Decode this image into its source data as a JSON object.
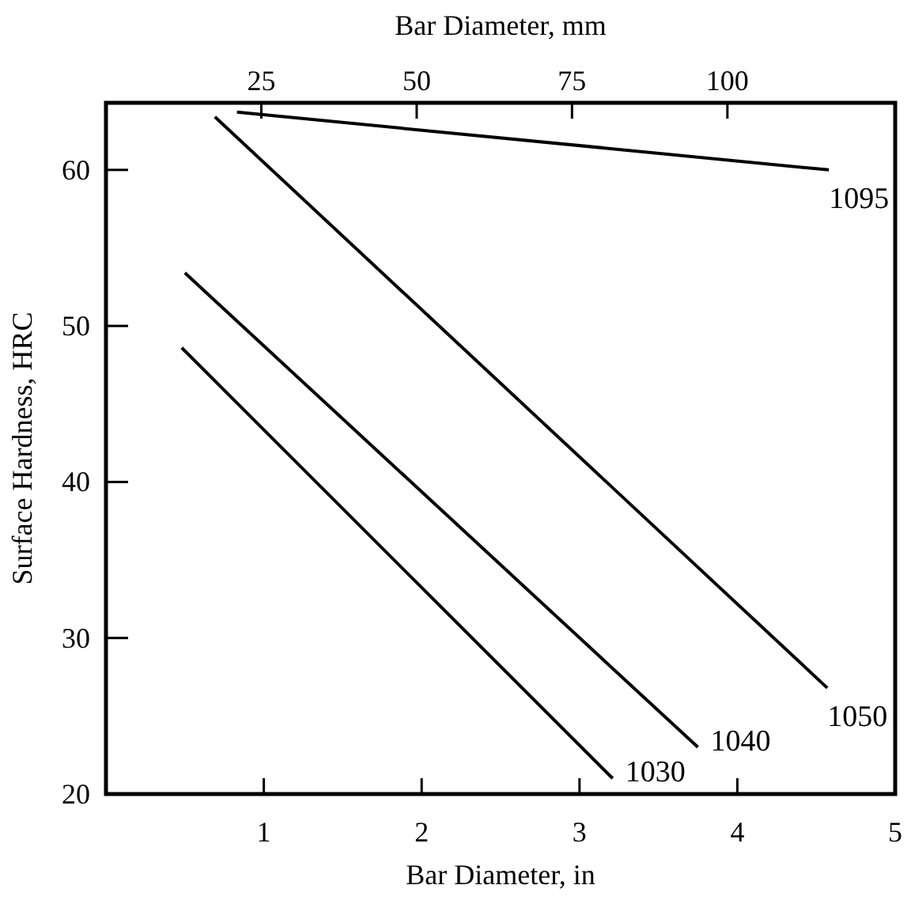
{
  "chart_data": {
    "type": "line",
    "xlabel": "Bar Diameter, in",
    "ylabel": "Surface Hardness, HRC",
    "x2label": "Bar Diameter, mm",
    "xlim": [
      0,
      5
    ],
    "xticks": [
      1,
      2,
      3,
      4,
      5
    ],
    "x2lim": [
      0,
      127
    ],
    "x2ticks": [
      25,
      50,
      75,
      100
    ],
    "ylim": [
      20,
      64.3
    ],
    "yticks": [
      20,
      30,
      40,
      50,
      60
    ],
    "grid": false,
    "marker": "none",
    "line_style": "solid",
    "series": [
      {
        "color": "#000000",
        "x": [
          0.83,
          4.58
        ],
        "values": [
          63.7,
          60.0
        ]
      },
      {
        "color": "#000000",
        "x": [
          0.69,
          4.57
        ],
        "values": [
          63.4,
          26.8
        ]
      },
      {
        "color": "#000000",
        "x": [
          0.5,
          3.75
        ],
        "values": [
          53.4,
          23.0
        ]
      },
      {
        "color": "#000000",
        "x": [
          0.48,
          3.21
        ],
        "values": [
          48.6,
          21.0
        ]
      }
    ],
    "annotations": [
      {
        "text": "1095",
        "x": 4.58,
        "y": 60.0
      },
      {
        "text": "1050",
        "x": 4.57,
        "y": 26.8
      },
      {
        "text": "1040",
        "x": 3.75,
        "y": 23.0
      },
      {
        "text": "1030",
        "x": 3.21,
        "y": 21.0
      }
    ]
  }
}
